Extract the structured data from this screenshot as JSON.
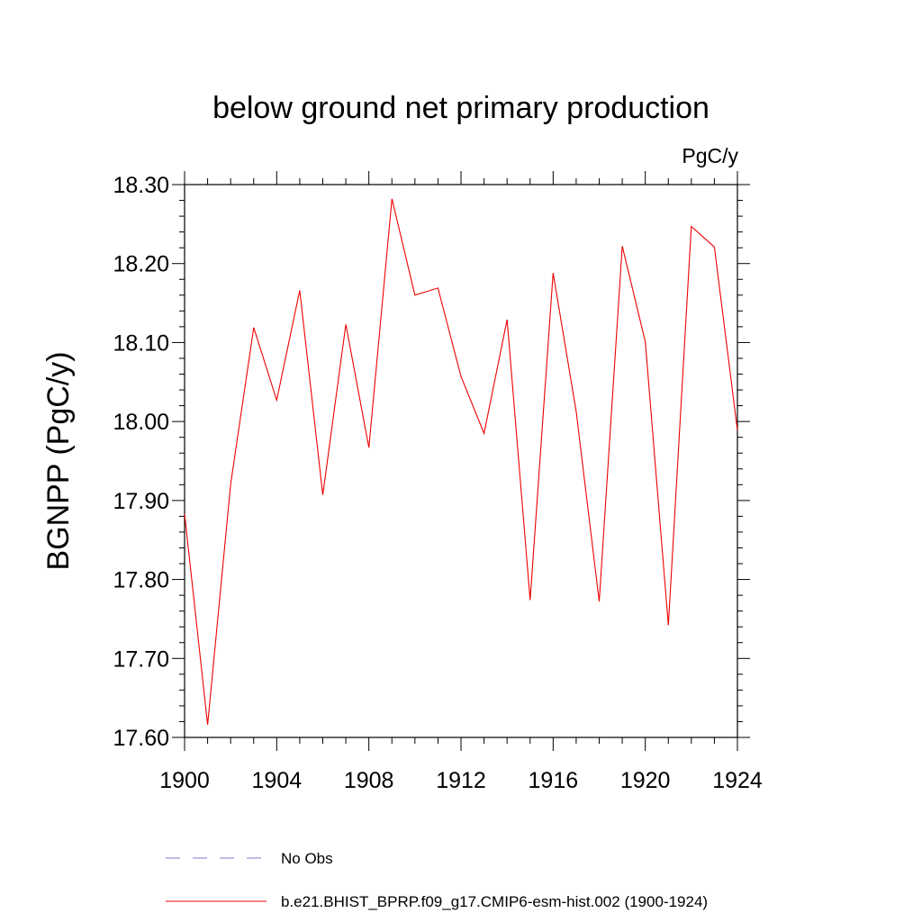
{
  "chart_data": {
    "type": "line",
    "title": "below ground net primary production",
    "units_label": "PgC/y",
    "xlabel": "",
    "ylabel": "BGNPP  (PgC/y)",
    "xlim": [
      1900,
      1924
    ],
    "ylim": [
      17.6,
      18.3
    ],
    "x_ticks": [
      1900,
      1904,
      1908,
      1912,
      1916,
      1920,
      1924
    ],
    "x_tick_labels": [
      "1900",
      "1904",
      "1908",
      "1912",
      "1916",
      "1920",
      "1924"
    ],
    "y_ticks": [
      17.6,
      17.7,
      17.8,
      17.9,
      18.0,
      18.1,
      18.2,
      18.3
    ],
    "y_tick_labels": [
      "17.60",
      "17.70",
      "17.80",
      "17.90",
      "18.00",
      "18.10",
      "18.20",
      "18.30"
    ],
    "grid": false,
    "legend_position": "bottom",
    "series": [
      {
        "name": "b.e21.BHIST_BPRP.f09_g17.CMIP6-esm-hist.002 (1900-1924)",
        "color": "#ee0000",
        "style": "solid",
        "x": [
          1900,
          1901,
          1902,
          1903,
          1904,
          1905,
          1906,
          1907,
          1908,
          1909,
          1910,
          1911,
          1912,
          1913,
          1914,
          1915,
          1916,
          1917,
          1918,
          1919,
          1920,
          1921,
          1922,
          1923,
          1924
        ],
        "values": [
          17.883,
          17.616,
          17.921,
          18.119,
          18.027,
          18.166,
          17.907,
          18.123,
          17.967,
          18.282,
          18.16,
          18.169,
          18.057,
          17.985,
          18.129,
          17.774,
          18.188,
          18.013,
          17.772,
          18.222,
          18.101,
          17.742,
          18.247,
          18.221,
          17.989
        ]
      }
    ],
    "legend": [
      {
        "label": "No Obs",
        "color": "#7b7bd6",
        "style": "dashed"
      },
      {
        "label": "b.e21.BHIST_BPRP.f09_g17.CMIP6-esm-hist.002 (1900-1924)",
        "color": "#ee0000",
        "style": "solid"
      }
    ]
  }
}
